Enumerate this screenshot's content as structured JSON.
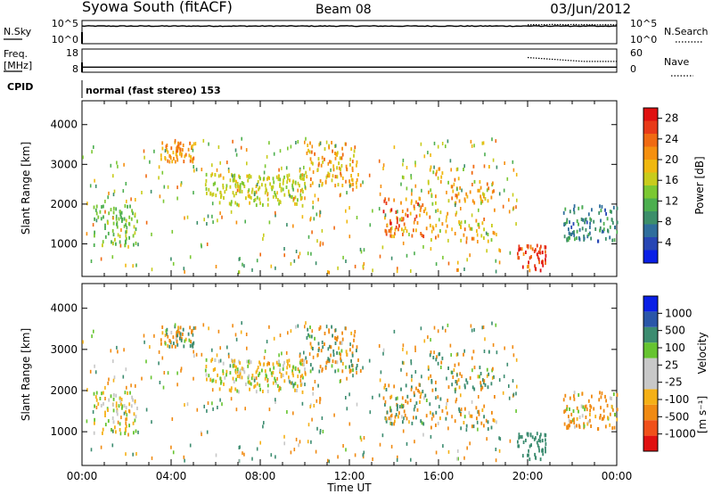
{
  "header": {
    "station": "Syowa South (fitACF)",
    "beam": "Beam 08",
    "date": "03/Jun/2012"
  },
  "noise_panel": {
    "left_label": "N.Sky",
    "right_label": "N.Search",
    "left_ticks": [
      "10^5",
      "10^0"
    ],
    "right_ticks": [
      "10^5",
      "10^0"
    ]
  },
  "freq_panel": {
    "left_label_1": "Freq.",
    "left_label_2": "[MHz]",
    "right_label": "Nave",
    "left_ticks": [
      "18",
      "8"
    ],
    "right_ticks": [
      "60",
      "0"
    ]
  },
  "cpid": {
    "label": "CPID",
    "mode_text": "normal (fast stereo) 153"
  },
  "colors": {
    "scale": [
      "#0a1fe6",
      "#2746b4",
      "#2f6e9c",
      "#3c8e6a",
      "#4caf4f",
      "#7bc832",
      "#c8cc1c",
      "#f0b810",
      "#f59010",
      "#f06a12",
      "#e83a18",
      "#e01010"
    ],
    "velocity_scale": [
      "#e01010",
      "#f0501a",
      "#f08a12",
      "#f5b016",
      "#c8c8c8",
      "#c8c8c8",
      "#66c430",
      "#3c8c70",
      "#2a56a8",
      "#0a1fe6"
    ]
  },
  "power_colorbar": {
    "label": "Power [dB]",
    "ticks": [
      "28",
      "24",
      "20",
      "16",
      "12",
      "8",
      "4"
    ]
  },
  "velocity_colorbar": {
    "label": "Velocity",
    "unit": "[m s⁻¹]",
    "ticks": [
      "1000",
      "500",
      "100",
      "25",
      "-25",
      "-100",
      "-500",
      "-1000"
    ]
  },
  "chart_data": {
    "type": "heatmap",
    "xlabel": "Time UT",
    "ylabel": "Slant Range [km]",
    "x_ticks": [
      "00:00",
      "04:00",
      "08:00",
      "12:00",
      "16:00",
      "20:00",
      "00:00"
    ],
    "y_ticks": [
      "4000",
      "3000",
      "2000",
      "1000"
    ],
    "xlim_hours": [
      0,
      24
    ],
    "ylim_km": [
      180,
      4600
    ],
    "panels": [
      "Power [dB]",
      "Velocity [m s⁻¹]"
    ],
    "noise_sky_log10": 3.8,
    "noise_search_log10_before_20h": 3.8,
    "noise_search_log10_after_20h": 4.1,
    "freq_mhz": 10.2,
    "nave_before_20h": 5,
    "nave_after_20h_start": 38,
    "nave_after_20h_end": 28,
    "scatter_clusters": [
      {
        "time_h": [
          0.5,
          2.5
        ],
        "range_km": [
          1000,
          2000
        ],
        "power_db": [
          10,
          16
        ],
        "velocity": [
          -100,
          100
        ]
      },
      {
        "time_h": [
          3.5,
          5.0
        ],
        "range_km": [
          3100,
          3600
        ],
        "power_db": [
          18,
          24
        ],
        "velocity": [
          -500,
          500
        ]
      },
      {
        "time_h": [
          5.5,
          10.0
        ],
        "range_km": [
          2000,
          2800
        ],
        "power_db": [
          14,
          18
        ],
        "velocity": [
          -100,
          100
        ]
      },
      {
        "time_h": [
          10.0,
          12.5
        ],
        "range_km": [
          2500,
          3600
        ],
        "power_db": [
          16,
          24
        ],
        "velocity": [
          -500,
          500
        ]
      },
      {
        "time_h": [
          13.5,
          15.5
        ],
        "range_km": [
          1200,
          2200
        ],
        "power_db": [
          18,
          28
        ],
        "velocity": [
          -500,
          500
        ]
      },
      {
        "time_h": [
          15.5,
          18.5
        ],
        "range_km": [
          1100,
          3000
        ],
        "power_db": [
          14,
          24
        ],
        "velocity": [
          -500,
          500
        ]
      },
      {
        "time_h": [
          19.5,
          20.8
        ],
        "range_km": [
          350,
          1000
        ],
        "power_db": [
          22,
          30
        ],
        "velocity": [
          100,
          500
        ]
      },
      {
        "time_h": [
          21.5,
          24.0
        ],
        "range_km": [
          1100,
          2000
        ],
        "power_db": [
          4,
          12
        ],
        "velocity": [
          -500,
          100
        ]
      }
    ]
  }
}
